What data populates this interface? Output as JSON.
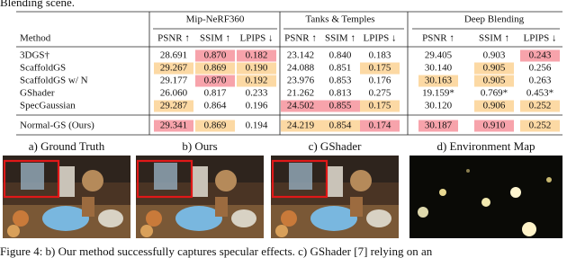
{
  "intro_text": "Blending scene.",
  "table": {
    "groups": [
      "Mip-NeRF360",
      "Tanks & Temples",
      "Deep Blending"
    ],
    "columns": [
      "Method",
      "PSNR ↑",
      "SSIM ↑",
      "LPIPS ↓",
      "PSNR ↑",
      "SSIM ↑",
      "LPIPS ↓",
      "PSNR ↑",
      "SSIM ↑",
      "LPIPS ↓"
    ],
    "rows": [
      {
        "method": "3DGS†",
        "cells": [
          "28.691",
          "0.870",
          "0.182",
          "23.142",
          "0.840",
          "0.183",
          "29.405",
          "0.903",
          "0.243"
        ],
        "colors": [
          null,
          "#f7a3ab",
          "#f7a3ab",
          null,
          null,
          null,
          null,
          null,
          "#f7a3ab"
        ]
      },
      {
        "method": "ScaffoldGS",
        "cells": [
          "29.267",
          "0.869",
          "0.190",
          "24.088",
          "0.851",
          "0.175",
          "30.140",
          "0.905",
          "0.256"
        ],
        "colors": [
          "#fcd9a4",
          "#fcd9a4",
          "#fcd9a4",
          null,
          null,
          "#fcd9a4",
          null,
          "#fcd9a4",
          null
        ]
      },
      {
        "method": "ScaffoldGS w/ N",
        "cells": [
          "29.177",
          "0.870",
          "0.192",
          "23.976",
          "0.853",
          "0.176",
          "30.163",
          "0.905",
          "0.263"
        ],
        "colors": [
          null,
          "#f7a3ab",
          "#fcd9a4",
          null,
          null,
          null,
          "#fcd9a4",
          "#fcd9a4",
          null
        ]
      },
      {
        "method": "GShader",
        "cells": [
          "26.060",
          "0.817",
          "0.233",
          "21.262",
          "0.813",
          "0.275",
          "19.159*",
          "0.769*",
          "0.453*"
        ],
        "colors": [
          null,
          null,
          null,
          null,
          null,
          null,
          null,
          null,
          null
        ]
      },
      {
        "method": "SpecGaussian",
        "cells": [
          "29.287",
          "0.864",
          "0.196",
          "24.502",
          "0.855",
          "0.175",
          "30.120",
          "0.906",
          "0.252"
        ],
        "colors": [
          "#fcd9a4",
          null,
          null,
          "#f7a3ab",
          "#f7a3ab",
          "#fcd9a4",
          null,
          "#fcd9a4",
          "#fcd9a4"
        ]
      },
      {
        "method": "Normal-GS (Ours)",
        "cells": [
          "29.341",
          "0.869",
          "0.194",
          "24.219",
          "0.854",
          "0.174",
          "30.187",
          "0.910",
          "0.252"
        ],
        "colors": [
          "#f7a3ab",
          "#fcd9a4",
          null,
          "#fcd9a4",
          "#fcd9a4",
          "#f7a3ab",
          "#f7a3ab",
          "#f7a3ab",
          "#fcd9a4"
        ]
      }
    ]
  },
  "figure": {
    "panels": [
      "a) Ground Truth",
      "b) Ours",
      "c) GShader",
      "d) Environment Map"
    ],
    "caption": "Figure 4: b) Our method successfully captures specular effects. c) GShader [7] relying on an"
  }
}
